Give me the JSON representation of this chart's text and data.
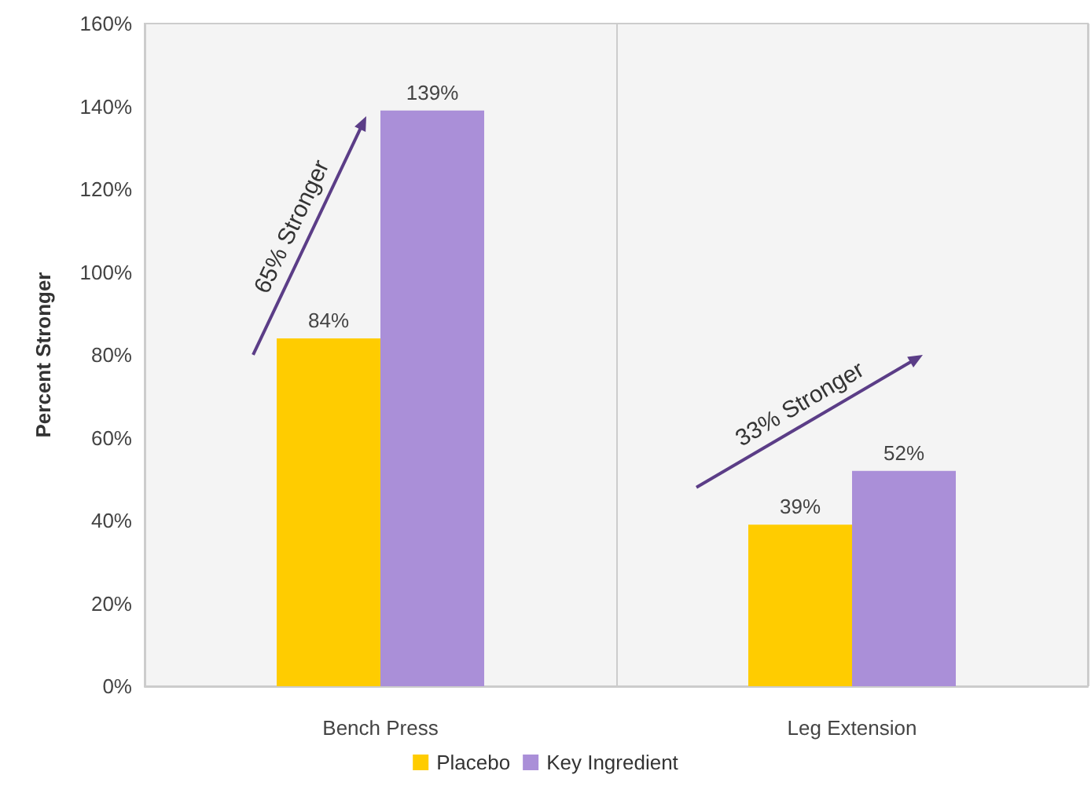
{
  "chart_data": {
    "type": "bar",
    "ylabel": "Percent Stronger",
    "categories": [
      "Bench Press",
      "Leg Extension"
    ],
    "series": [
      {
        "name": "Placebo",
        "color": "#ffcc00",
        "values": [
          84,
          39
        ],
        "value_labels": [
          "84%",
          "39%"
        ]
      },
      {
        "name": "Key Ingredient",
        "color": "#aa8fd8",
        "values": [
          139,
          52
        ],
        "value_labels": [
          "139%",
          "52%"
        ]
      }
    ],
    "ylim": [
      0,
      160
    ],
    "yticks": [
      {
        "value": 0,
        "label": "0%"
      },
      {
        "value": 20,
        "label": "20%"
      },
      {
        "value": 40,
        "label": "40%"
      },
      {
        "value": 60,
        "label": "60%"
      },
      {
        "value": 80,
        "label": "80%"
      },
      {
        "value": 100,
        "label": "100%"
      },
      {
        "value": 120,
        "label": "120%"
      },
      {
        "value": 140,
        "label": "140%"
      },
      {
        "value": 160,
        "label": "160%"
      }
    ],
    "grid": "x",
    "legend": "bottom",
    "annotations": [
      "65% Stronger",
      "33% Stronger"
    ]
  }
}
